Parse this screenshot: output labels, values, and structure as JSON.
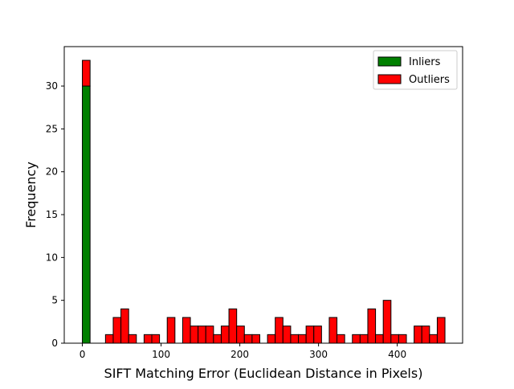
{
  "chart_data": {
    "type": "bar",
    "subtype": "stacked-histogram",
    "title": "",
    "xlabel": "SIFT Matching Error (Euclidean Distance in Pixels)",
    "ylabel": "Frequency",
    "xlim": [
      -23,
      483
    ],
    "ylim": [
      0,
      34.6
    ],
    "xticks": [
      0,
      100,
      200,
      300,
      400
    ],
    "yticks": [
      0,
      5,
      10,
      15,
      20,
      25,
      30
    ],
    "bin_width": 9.8,
    "bin_start": 0,
    "grid": false,
    "legend": {
      "position": "top-right",
      "entries": [
        "Inliers",
        "Outliers"
      ]
    },
    "series": [
      {
        "name": "Inliers",
        "color": "#008000",
        "values": [
          30,
          0,
          0,
          0,
          0,
          0,
          0,
          0,
          0,
          0,
          0,
          0,
          0,
          0,
          0,
          0,
          0,
          0,
          0,
          0,
          0,
          0,
          0,
          0,
          0,
          0,
          0,
          0,
          0,
          0,
          0,
          0,
          0,
          0,
          0,
          0,
          0,
          0,
          0,
          0,
          0,
          0,
          0,
          0,
          0,
          0,
          0
        ]
      },
      {
        "name": "Outliers",
        "color": "#ff0000",
        "values": [
          3,
          0,
          0,
          1,
          3,
          4,
          1,
          0,
          1,
          1,
          0,
          3,
          0,
          3,
          2,
          2,
          2,
          1,
          2,
          4,
          2,
          1,
          1,
          0,
          1,
          3,
          2,
          1,
          1,
          2,
          2,
          0,
          3,
          1,
          0,
          1,
          1,
          4,
          1,
          5,
          1,
          1,
          0,
          2,
          2,
          1,
          3
        ]
      }
    ]
  }
}
